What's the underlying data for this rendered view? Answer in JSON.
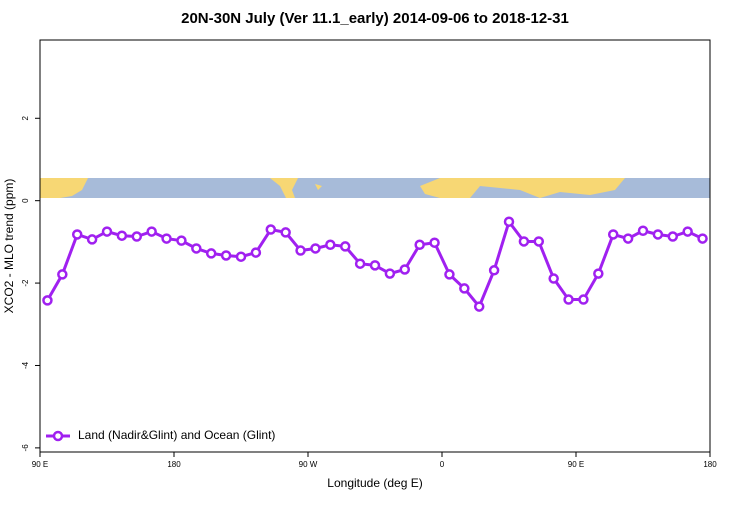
{
  "chart_data": {
    "type": "line",
    "title": "20N-30N July (Ver 11.1_early)   2014-09-06 to 2018-12-31",
    "x_label": "Longitude (deg E)",
    "y_label": "XCO2 - MLO trend (ppm)",
    "x": [
      95,
      105,
      115,
      125,
      135,
      145,
      155,
      165,
      175,
      185,
      195,
      205,
      215,
      225,
      235,
      245,
      255,
      265,
      275,
      285,
      295,
      305,
      315,
      325,
      335,
      345,
      355,
      365,
      375,
      385,
      395,
      405,
      415,
      425,
      435,
      445,
      455,
      465,
      475,
      485,
      495,
      505,
      515,
      525,
      535
    ],
    "series": [
      {
        "name": "Land (Nadir&Glint) and Ocean (Glint)",
        "color": "#a020f0",
        "values": [
          -2.42,
          -1.79,
          -0.82,
          -0.94,
          -0.75,
          -0.85,
          -0.87,
          -0.75,
          -0.92,
          -0.97,
          -1.16,
          -1.28,
          -1.33,
          -1.36,
          -1.26,
          -0.7,
          -0.77,
          -1.21,
          -1.16,
          -1.07,
          -1.11,
          -1.53,
          -1.57,
          -1.77,
          -1.67,
          -1.07,
          -1.02,
          -1.79,
          -2.13,
          -2.57,
          -1.69,
          -0.51,
          -0.99,
          -0.99,
          -1.89,
          -2.4,
          -2.4,
          -1.77,
          -0.82,
          -0.92,
          -0.73,
          -0.82,
          -0.87,
          -0.75,
          -0.92
        ]
      }
    ],
    "xlim": [
      90,
      540
    ],
    "xticks": [
      {
        "value": 90,
        "label": "90 E"
      },
      180,
      {
        "value": 270,
        "label": "90 W"
      },
      {
        "value": 360,
        "label": "0"
      },
      {
        "value": 450,
        "label": "90 E"
      },
      {
        "value": 540,
        "label": "180"
      }
    ],
    "ylim": [
      -6.1,
      3.9
    ],
    "yticks": [
      -6,
      -4,
      -2,
      0,
      2
    ],
    "legend": "bottom-left"
  }
}
